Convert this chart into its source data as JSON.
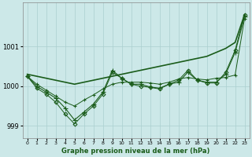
{
  "xlabel": "Graphe pression niveau de la mer (hPa)",
  "background_color": "#cce8e8",
  "grid_color": "#aacfcf",
  "line_color": "#1a5c1a",
  "x_ticks": [
    0,
    1,
    2,
    3,
    4,
    5,
    6,
    7,
    8,
    9,
    10,
    11,
    12,
    13,
    14,
    15,
    16,
    17,
    18,
    19,
    20,
    21,
    22,
    23
  ],
  "ylim": [
    998.7,
    1002.1
  ],
  "yticks": [
    999,
    1000,
    1001
  ],
  "series": [
    {
      "name": "smooth_trend",
      "x": [
        0,
        1,
        2,
        3,
        4,
        5,
        6,
        7,
        8,
        9,
        10,
        11,
        12,
        13,
        14,
        15,
        16,
        17,
        18,
        19,
        20,
        21,
        22,
        23
      ],
      "y": [
        1000.3,
        1000.25,
        1000.2,
        1000.15,
        1000.1,
        1000.05,
        1000.1,
        1000.15,
        1000.2,
        1000.25,
        1000.3,
        1000.35,
        1000.4,
        1000.45,
        1000.5,
        1000.55,
        1000.6,
        1000.65,
        1000.7,
        1000.75,
        1000.85,
        1000.95,
        1001.1,
        1001.8
      ],
      "marker": null,
      "markersize": 0,
      "linewidth": 1.2,
      "linestyle": "-"
    },
    {
      "name": "series_cross1",
      "x": [
        0,
        1,
        2,
        3,
        4,
        5,
        6,
        7,
        8,
        9,
        10,
        11,
        12,
        13,
        14,
        15,
        16,
        17,
        18,
        19,
        20,
        21,
        22,
        23
      ],
      "y": [
        1000.25,
        1000.0,
        999.85,
        999.7,
        999.45,
        999.15,
        999.35,
        999.55,
        999.85,
        1000.4,
        1000.2,
        1000.05,
        1000.05,
        999.98,
        999.95,
        1000.05,
        1000.1,
        1000.35,
        1000.15,
        1000.1,
        1000.1,
        1000.3,
        1000.85,
        1001.75
      ],
      "marker": "+",
      "markersize": 4,
      "linewidth": 0.8,
      "linestyle": "-"
    },
    {
      "name": "series_diamond",
      "x": [
        0,
        1,
        2,
        3,
        4,
        5,
        6,
        7,
        8,
        9,
        10,
        11,
        12,
        13,
        14,
        15,
        16,
        17,
        18,
        19,
        20,
        21,
        22,
        23
      ],
      "y": [
        1000.25,
        999.95,
        999.8,
        999.6,
        999.3,
        999.05,
        999.3,
        999.5,
        999.8,
        1000.35,
        1000.2,
        1000.05,
        1000.0,
        999.97,
        999.93,
        1000.05,
        1000.15,
        1000.4,
        1000.15,
        1000.08,
        1000.08,
        1000.35,
        1000.9,
        1001.8
      ],
      "marker": "D",
      "markersize": 2.5,
      "linewidth": 0.7,
      "linestyle": "-"
    },
    {
      "name": "series_cross2",
      "x": [
        0,
        1,
        2,
        3,
        4,
        5,
        6,
        7,
        8,
        9,
        10,
        11,
        12,
        13,
        14,
        15,
        16,
        17,
        18,
        19,
        20,
        21,
        22,
        23
      ],
      "y": [
        1000.25,
        1000.05,
        999.9,
        999.75,
        999.6,
        999.5,
        999.65,
        999.78,
        999.93,
        1000.05,
        1000.1,
        1000.1,
        1000.1,
        1000.08,
        1000.05,
        1000.1,
        1000.18,
        1000.22,
        1000.18,
        1000.16,
        1000.2,
        1000.22,
        1000.28,
        1001.7
      ],
      "marker": "+",
      "markersize": 3,
      "linewidth": 0.7,
      "linestyle": "-"
    }
  ]
}
